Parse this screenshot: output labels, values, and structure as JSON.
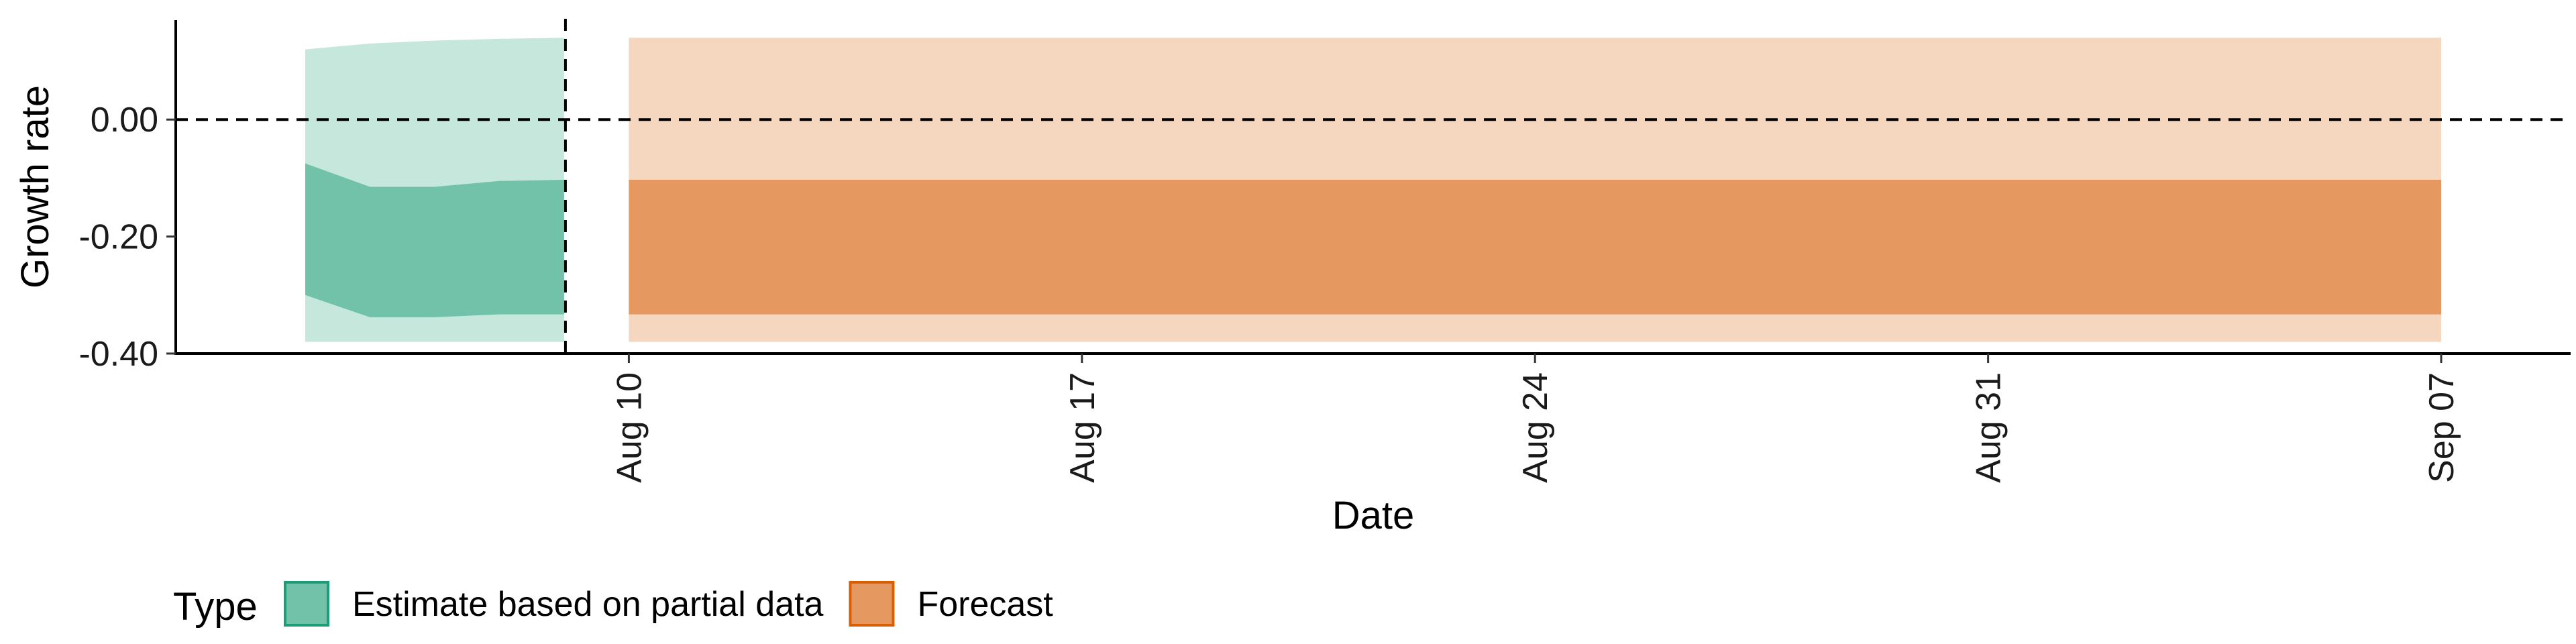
{
  "chart_data": {
    "type": "area",
    "xlabel": "Date",
    "ylabel": "Growth rate",
    "ylim": [
      -0.4,
      0.17
    ],
    "y_ticks": [
      0.0,
      -0.2,
      -0.4
    ],
    "y_tick_labels": [
      "0.00",
      "-0.20",
      "-0.40"
    ],
    "x_ticks": [
      "2023-08-10",
      "2023-08-17",
      "2023-08-24",
      "2023-08-31",
      "2023-09-07"
    ],
    "x_tick_labels": [
      "Aug 10",
      "Aug 17",
      "Aug 24",
      "Aug 31",
      "Sep 07"
    ],
    "xlim": [
      "2023-08-03",
      "2023-09-09"
    ],
    "reference_lines": {
      "horizontal_y": 0.0,
      "vertical_x": "2023-08-09"
    },
    "grid": false,
    "legend": {
      "title": "Type",
      "placement": "bottom",
      "entries": [
        {
          "label": "Estimate based on partial data",
          "fill": "#72c2aa",
          "border": "#1b9e77"
        },
        {
          "label": "Forecast",
          "fill": "#e59961",
          "border": "#d95f02"
        }
      ]
    },
    "series": [
      {
        "name": "Estimate based on partial data",
        "color_outer": "#c5e7dc",
        "color_inner": "#72c2aa",
        "x": [
          "2023-08-05",
          "2023-08-06",
          "2023-08-07",
          "2023-08-08",
          "2023-08-09"
        ],
        "outer_upper": [
          0.12,
          0.13,
          0.135,
          0.138,
          0.14
        ],
        "outer_lower": [
          -0.38,
          -0.38,
          -0.38,
          -0.38,
          -0.38
        ],
        "inner_upper": [
          -0.075,
          -0.115,
          -0.115,
          -0.105,
          -0.103
        ],
        "inner_lower": [
          -0.3,
          -0.338,
          -0.338,
          -0.333,
          -0.333
        ]
      },
      {
        "name": "Forecast",
        "color_outer": "#f5d6bf",
        "color_inner": "#e59961",
        "x": [
          "2023-08-10",
          "2023-09-07"
        ],
        "outer_upper": [
          0.14,
          0.14
        ],
        "outer_lower": [
          -0.38,
          -0.38
        ],
        "inner_upper": [
          -0.103,
          -0.103
        ],
        "inner_lower": [
          -0.333,
          -0.333
        ]
      }
    ]
  }
}
